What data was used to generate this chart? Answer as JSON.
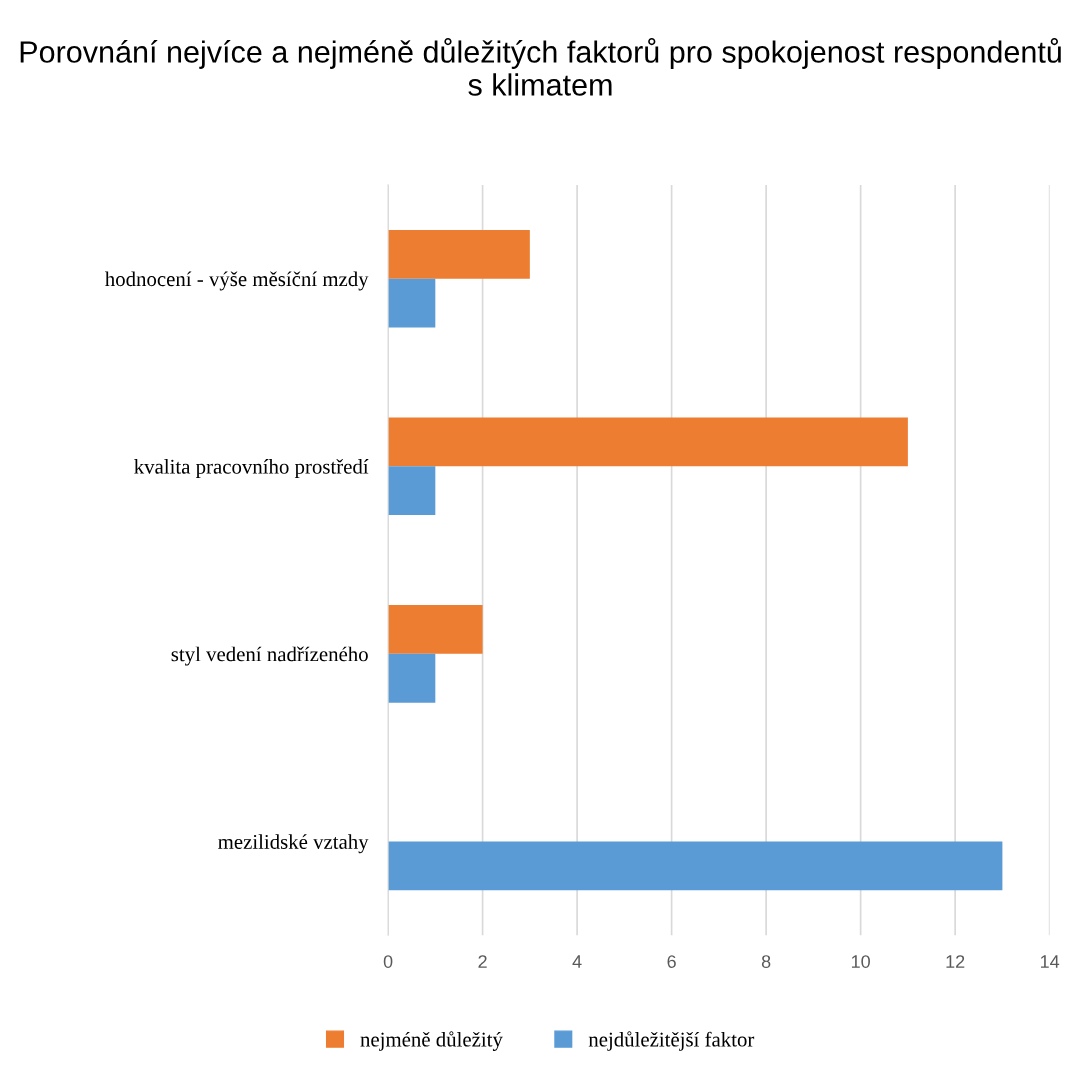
{
  "chart_data": {
    "type": "bar",
    "orientation": "horizontal",
    "title": "Porovnání nejvíce a nejméně důležitých faktorů pro spokojenost respondentů s klimatem",
    "categories": [
      "hodnocení - výše měsíční mzdy",
      "kvalita pracovního prostředí",
      "styl vedení nadřízeného",
      "mezilidské vztahy"
    ],
    "series": [
      {
        "name": "nejméně důležitý",
        "color": "#ed7d31",
        "values": [
          3,
          11,
          2,
          0
        ]
      },
      {
        "name": "nejdůležitější faktor",
        "color": "#5b9bd5",
        "values": [
          1,
          1,
          1,
          13
        ]
      }
    ],
    "xlim": [
      0,
      14
    ],
    "xticks": [
      0,
      2,
      4,
      6,
      8,
      10,
      12,
      14
    ],
    "grid": "x",
    "legend": "bottom"
  }
}
